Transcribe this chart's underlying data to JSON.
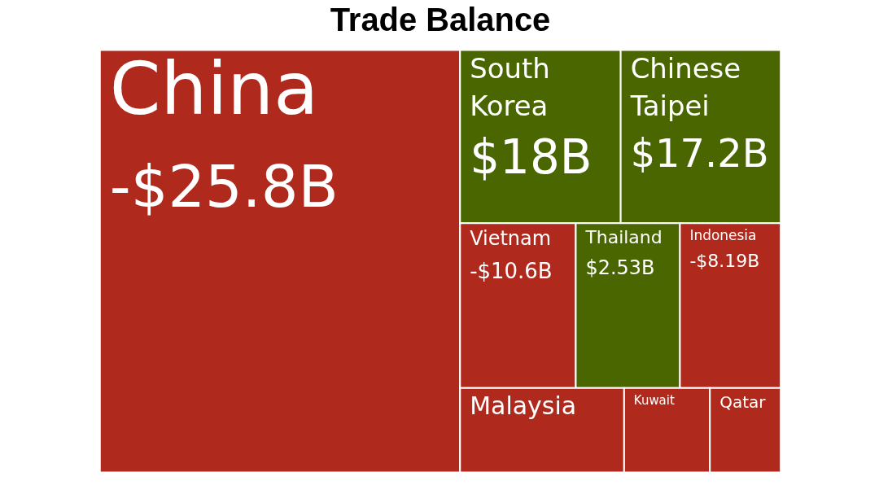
{
  "chart_data": {
    "type": "other",
    "title": "Trade Balance",
    "categories": [
      "China",
      "South Korea",
      "Chinese Taipei",
      "Vietnam",
      "Thailand",
      "Indonesia",
      "Malaysia",
      "Kuwait",
      "Qatar"
    ],
    "values": [
      -25.8,
      18,
      17.2,
      -10.6,
      2.53,
      -8.19,
      null,
      null,
      null
    ],
    "value_labels": [
      "-$25.8B",
      "$18B",
      "$17.2B",
      "-$10.6B",
      "$2.53B",
      "-$8.19B",
      null,
      null,
      null
    ],
    "colors": [
      "#b0291d",
      "#4a6600",
      "#4a6600",
      "#b0291d",
      "#4a6600",
      "#b0291d",
      "#b0291d",
      "#b0291d",
      "#b0291d"
    ]
  }
}
